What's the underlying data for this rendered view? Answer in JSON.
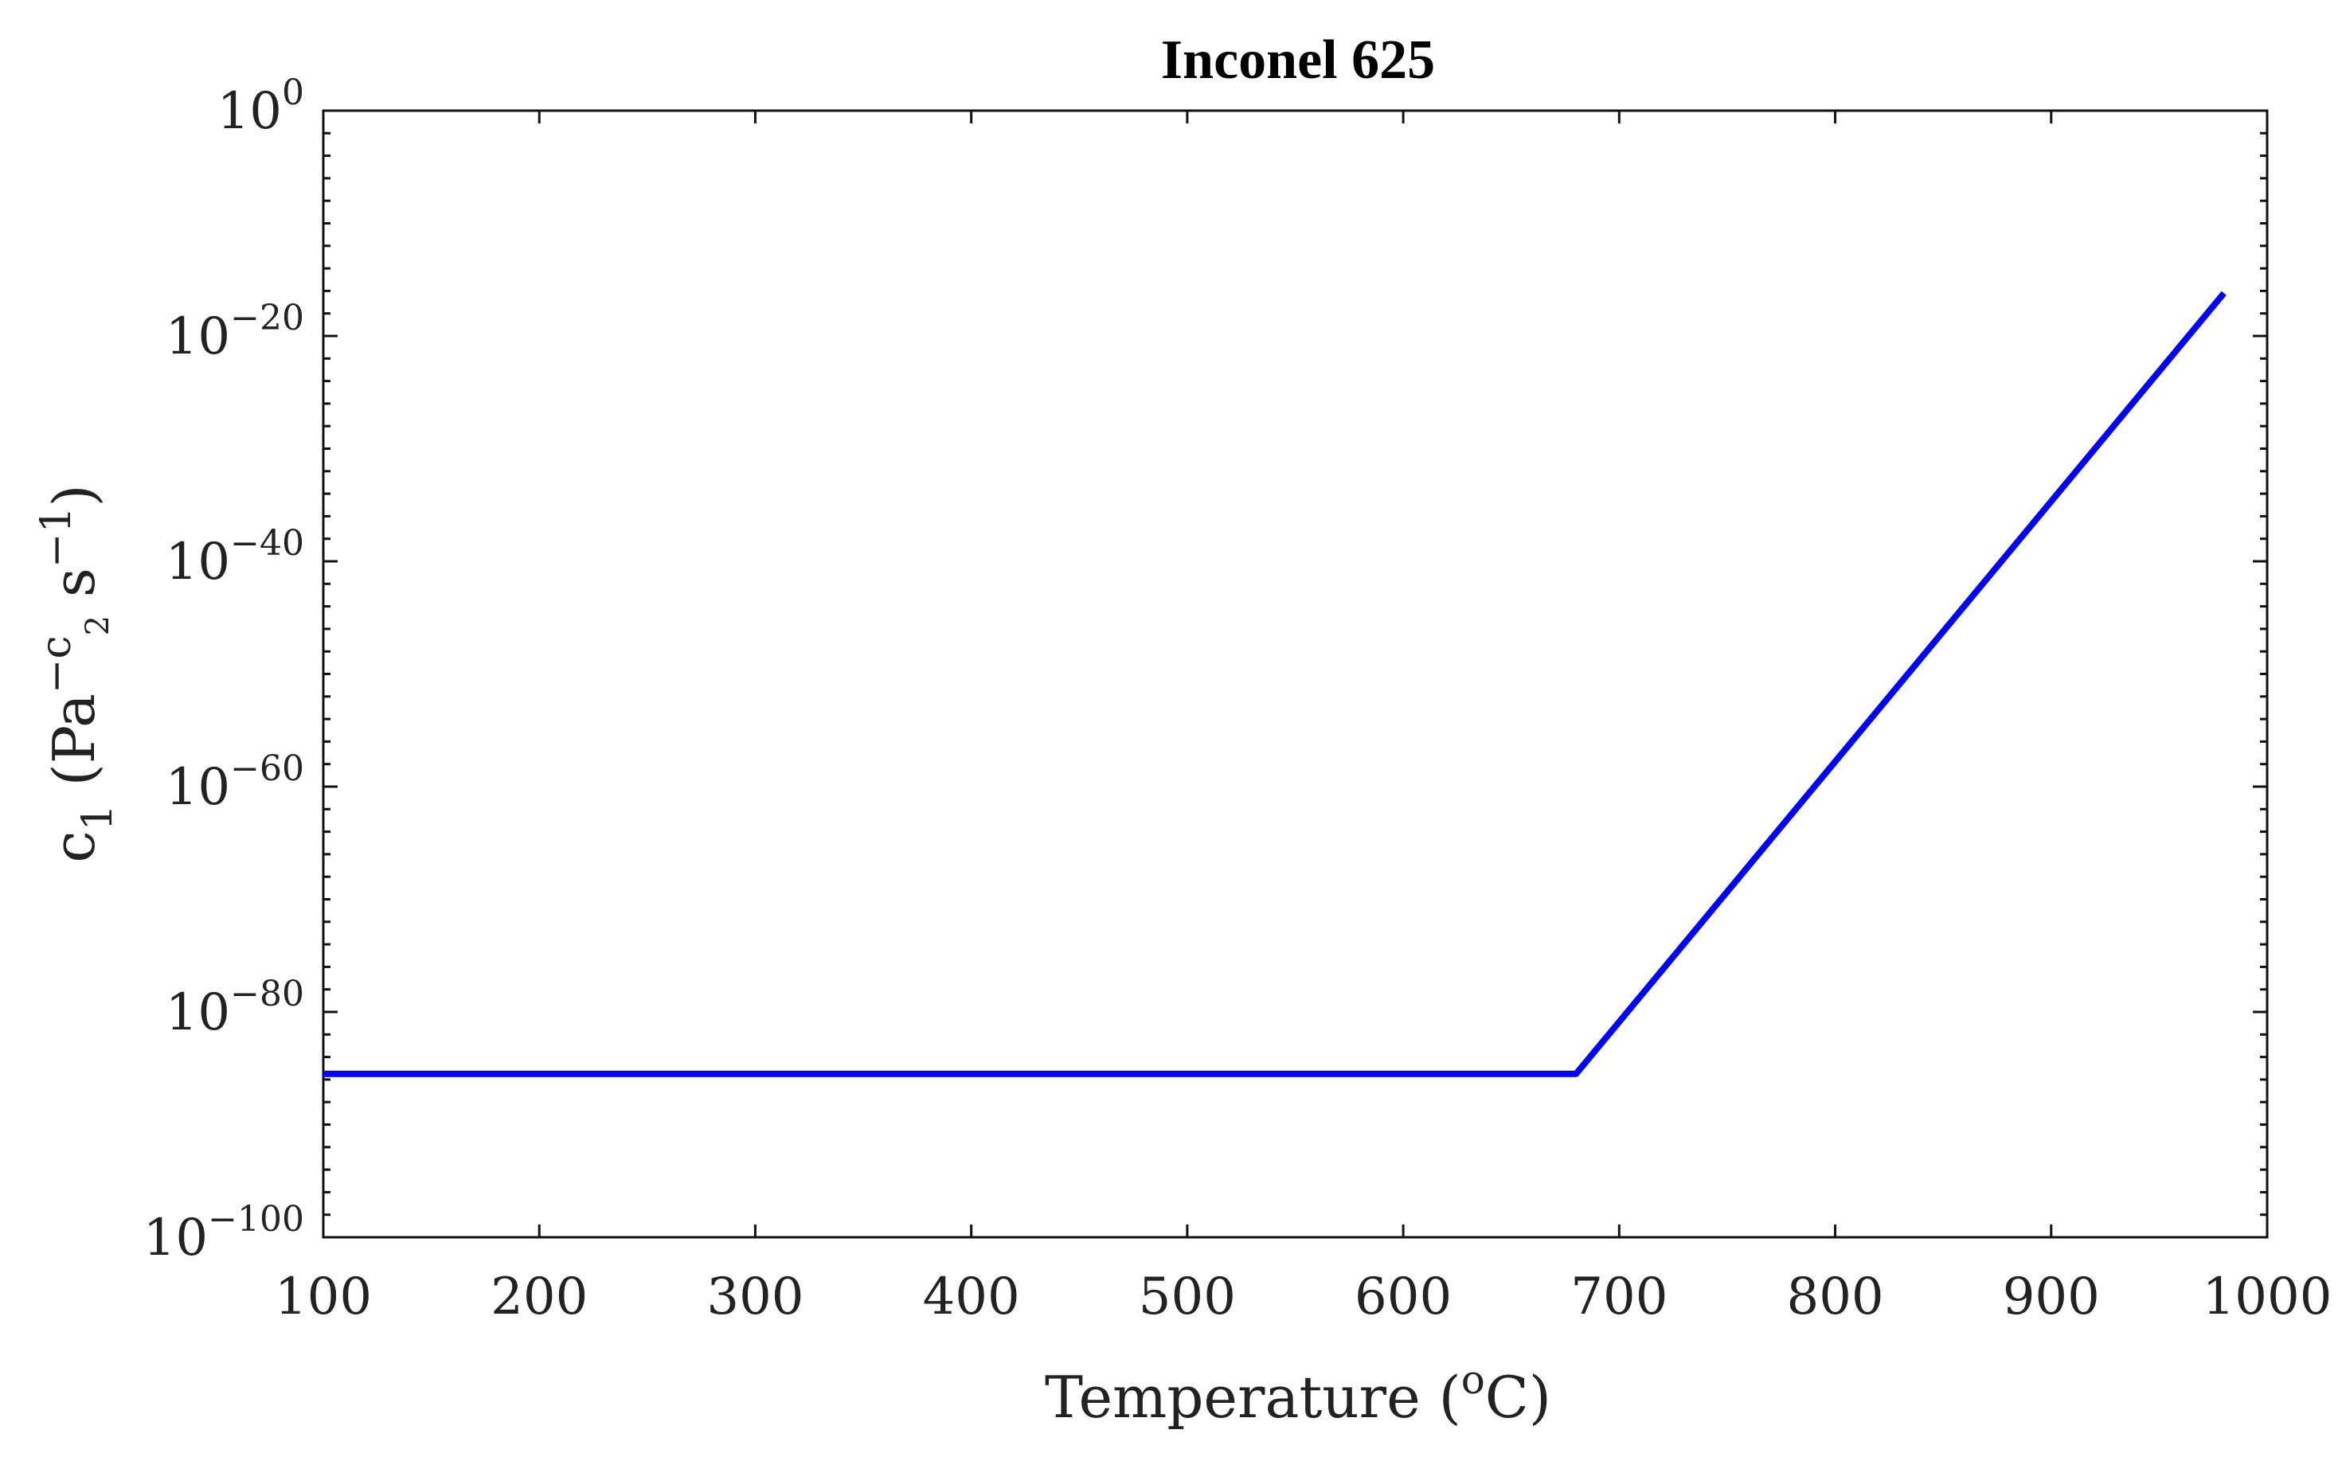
{
  "chart_data": {
    "type": "line",
    "title": "Inconel 625",
    "xlabel": "Temperature (°C)",
    "xlabel_parts": {
      "before": "Temperature (",
      "superscript": "o",
      "after": "C)"
    },
    "ylabel": "c1 (Pa^-c2 s^-1)",
    "ylabel_parts": {
      "c": "c",
      "sub1": "1",
      "paOpen": " (Pa",
      "supPart": "−c",
      "sub2": "2",
      "sPart": " s",
      "supNeg1": "−1",
      "close": ")"
    },
    "xlim": [
      100,
      1000
    ],
    "ylim_log10": [
      -100,
      0
    ],
    "y_scale": "log",
    "grid": false,
    "x_ticks": [
      100,
      200,
      300,
      400,
      500,
      600,
      700,
      800,
      900,
      1000
    ],
    "y_ticks": [
      {
        "base": "10",
        "exp": "0",
        "log10": 0
      },
      {
        "base": "10",
        "exp": "−20",
        "log10": -20
      },
      {
        "base": "10",
        "exp": "−40",
        "log10": -40
      },
      {
        "base": "10",
        "exp": "−60",
        "log10": -60
      },
      {
        "base": "10",
        "exp": "−80",
        "log10": -80
      },
      {
        "base": "10",
        "exp": "−100",
        "log10": -100
      }
    ],
    "series": [
      {
        "color": "#0000ff",
        "x": [
          100,
          680,
          980
        ],
        "y_log10": [
          -85.5,
          -85.5,
          -16.2
        ]
      }
    ]
  }
}
